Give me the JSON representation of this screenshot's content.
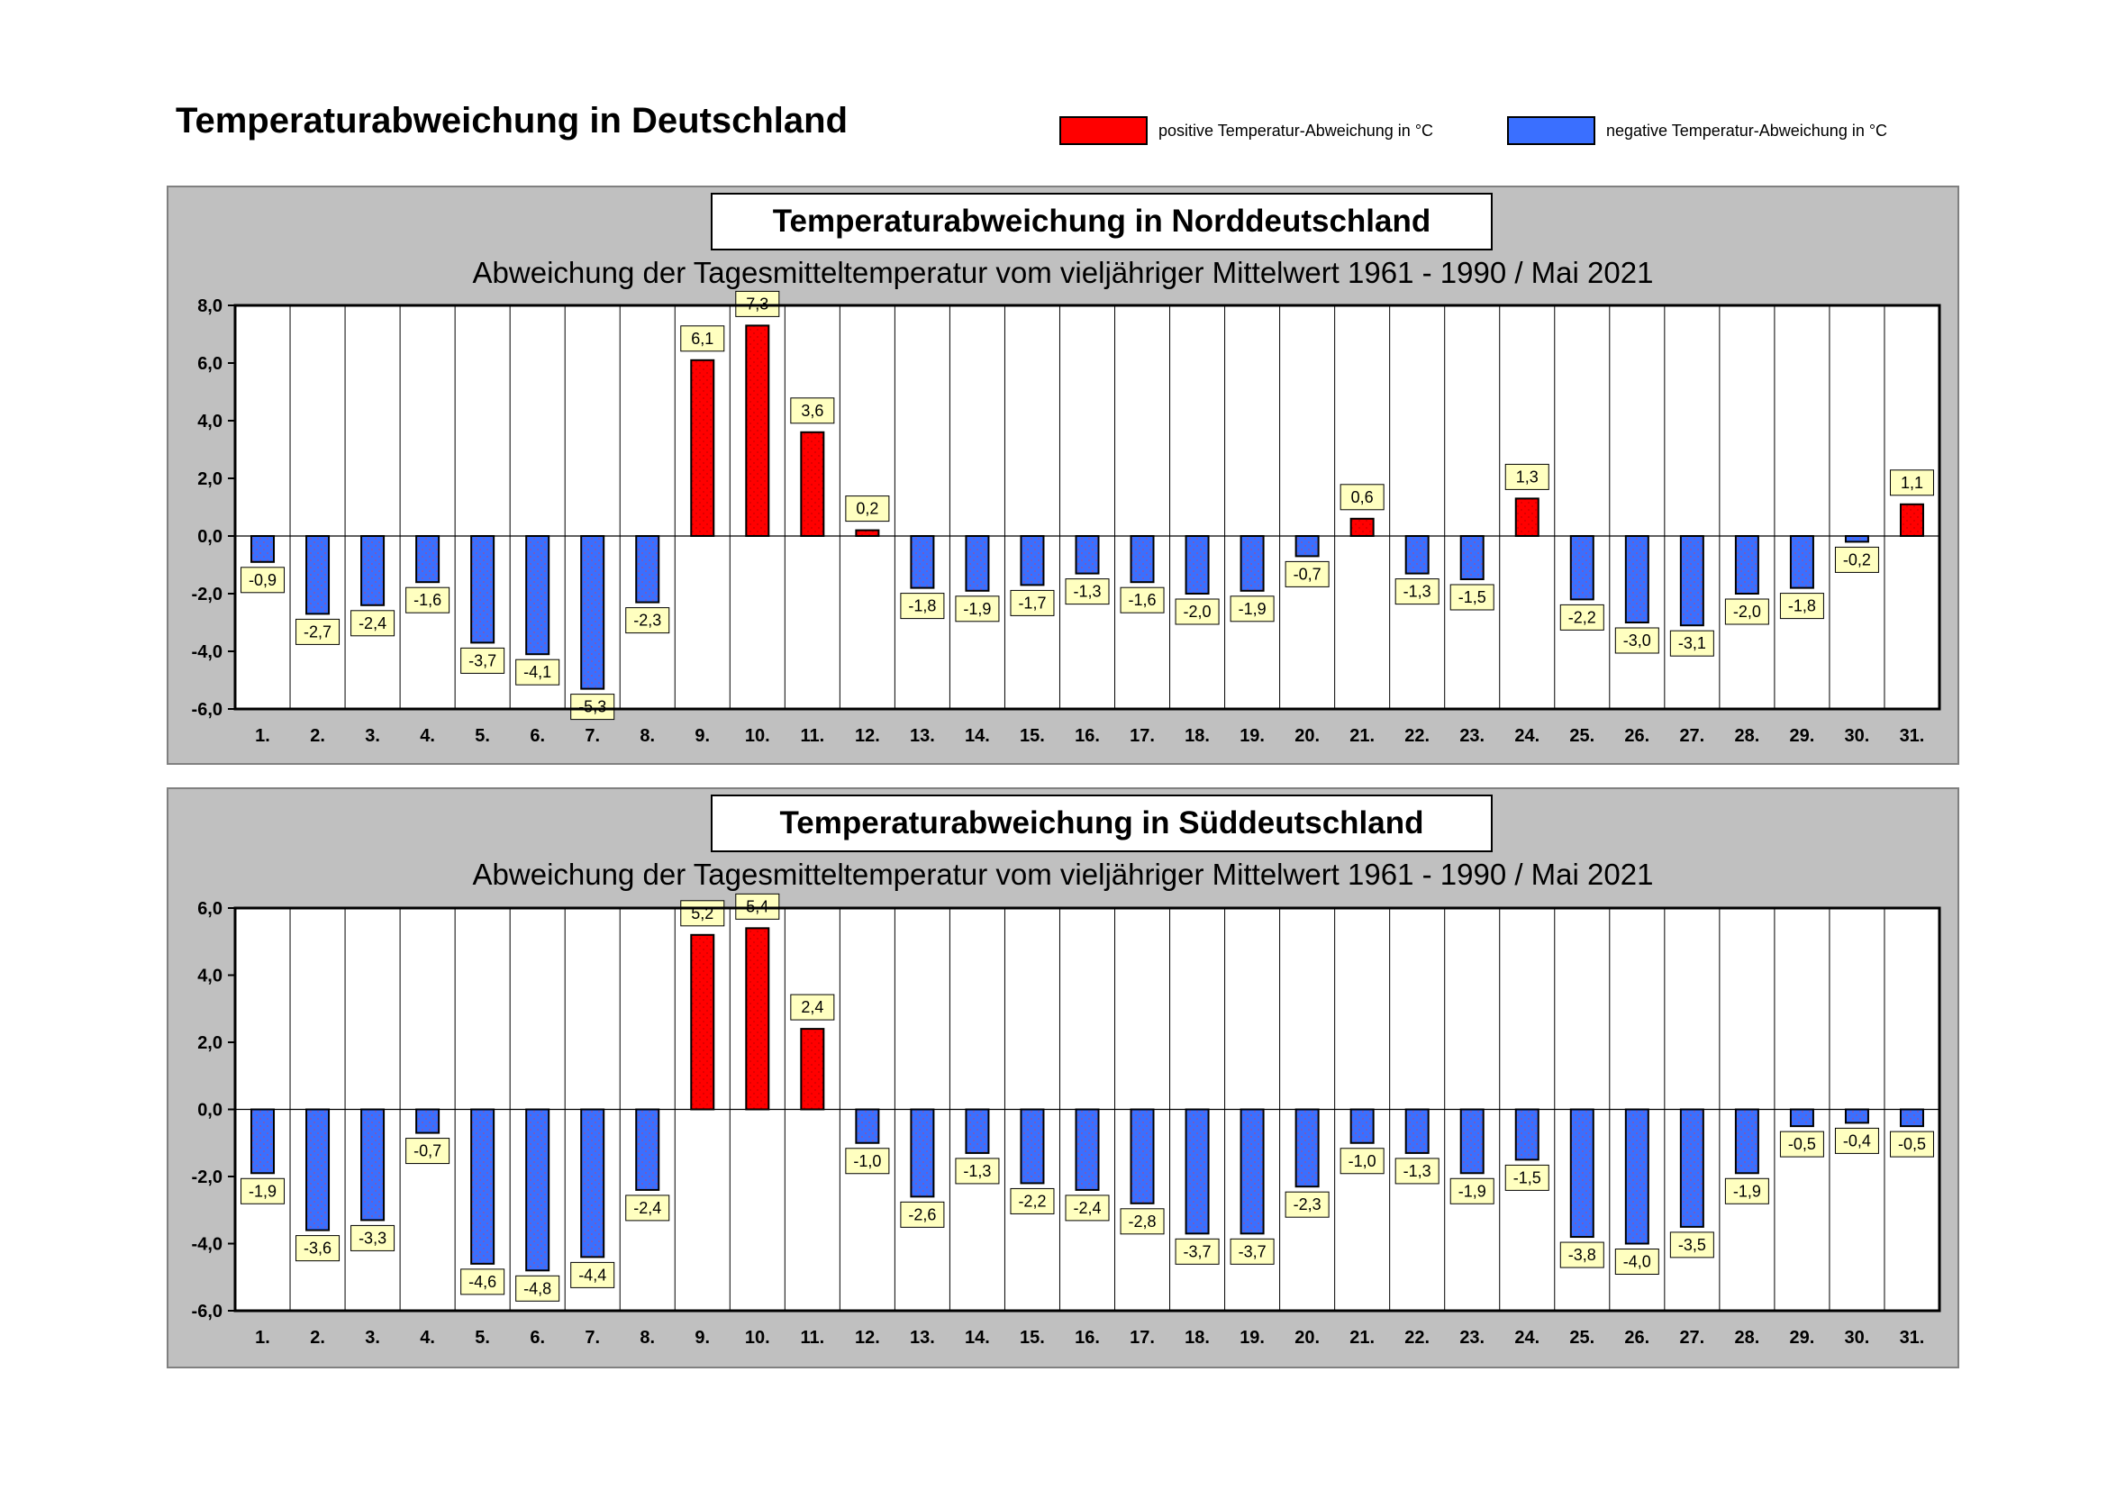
{
  "title": "Temperaturabweichung in Deutschland",
  "legend": {
    "positive_label": "positive Temperatur-Abweichung in °C",
    "negative_label": "negative Temperatur-Abweichung in °C",
    "positive_color": "#ff0000",
    "negative_color": "#3a6fff"
  },
  "charts": [
    {
      "title": "Temperaturabweichung in Norddeutschland",
      "subtitle": "Abweichung der Tagesmitteltemperatur vom vieljähriger Mittelwert 1961 - 1990  /  Mai 2021"
    },
    {
      "title": "Temperaturabweichung in Süddeutschland",
      "subtitle": "Abweichung der Tagesmitteltemperatur vom vieljähriger Mittelwert 1961 - 1990  /  Mai 2021"
    }
  ],
  "chart_data": [
    {
      "type": "bar",
      "title": "Temperaturabweichung in Norddeutschland",
      "categories": [
        "1.",
        "2.",
        "3.",
        "4.",
        "5.",
        "6.",
        "7.",
        "8.",
        "9.",
        "10.",
        "11.",
        "12.",
        "13.",
        "14.",
        "15.",
        "16.",
        "17.",
        "18.",
        "19.",
        "20.",
        "21.",
        "22.",
        "23.",
        "24.",
        "25.",
        "26.",
        "27.",
        "28.",
        "29.",
        "30.",
        "31."
      ],
      "values": [
        -0.9,
        -2.7,
        -2.4,
        -1.6,
        -3.7,
        -4.1,
        -5.3,
        -2.3,
        6.1,
        7.3,
        3.6,
        0.2,
        -1.8,
        -1.9,
        -1.7,
        -1.3,
        -1.6,
        -2.0,
        -1.9,
        -0.7,
        0.6,
        -1.3,
        -1.5,
        1.3,
        -2.2,
        -3.0,
        -3.1,
        -2.0,
        -1.8,
        -0.2,
        1.1
      ],
      "value_labels": [
        "-0,9",
        "-2,7",
        "-2,4",
        "-1,6",
        "-3,7",
        "-4,1",
        "-5,3",
        "-2,3",
        "6,1",
        "7,3",
        "3,6",
        "0,2",
        "-1,8",
        "-1,9",
        "-1,7",
        "-1,3",
        "-1,6",
        "-2,0",
        "-1,9",
        "-0,7",
        "0,6",
        "-1,3",
        "-1,5",
        "1,3",
        "-2,2",
        "-3,0",
        "-3,1",
        "-2,0",
        "-1,8",
        "-0,2",
        "1,1"
      ],
      "ylim": [
        -6,
        8
      ],
      "yticks": [
        "8,0",
        "6,0",
        "4,0",
        "2,0",
        "0,0",
        "-2,0",
        "-4,0",
        "-6,0"
      ],
      "grid": "vertical"
    },
    {
      "type": "bar",
      "title": "Temperaturabweichung in Süddeutschland",
      "categories": [
        "1.",
        "2.",
        "3.",
        "4.",
        "5.",
        "6.",
        "7.",
        "8.",
        "9.",
        "10.",
        "11.",
        "12.",
        "13.",
        "14.",
        "15.",
        "16.",
        "17.",
        "18.",
        "19.",
        "20.",
        "21.",
        "22.",
        "23.",
        "24.",
        "25.",
        "26.",
        "27.",
        "28.",
        "29.",
        "30.",
        "31."
      ],
      "values": [
        -1.9,
        -3.6,
        -3.3,
        -0.7,
        -4.6,
        -4.8,
        -4.4,
        -2.4,
        5.2,
        5.4,
        2.4,
        -1.0,
        -2.6,
        -1.3,
        -2.2,
        -2.4,
        -2.8,
        -3.7,
        -3.7,
        -2.3,
        -1.0,
        -1.3,
        -1.9,
        -1.5,
        -3.8,
        -4.0,
        -3.5,
        -1.9,
        -0.5,
        -0.4,
        -0.5
      ],
      "value_labels": [
        "-1,9",
        "-3,6",
        "-3,3",
        "-0,7",
        "-4,6",
        "-4,8",
        "-4,4",
        "-2,4",
        "5,2",
        "5,4",
        "2,4",
        "-1,0",
        "-2,6",
        "-1,3",
        "-2,2",
        "-2,4",
        "-2,8",
        "-3,7",
        "-3,7",
        "-2,3",
        "-1,0",
        "-1,3",
        "-1,9",
        "-1,5",
        "-3,8",
        "-4,0",
        "-3,5",
        "-1,9",
        "-0,5",
        "-0,4",
        "-0,5"
      ],
      "ylim": [
        -6,
        6
      ],
      "yticks": [
        "6,0",
        "4,0",
        "2,0",
        "0,0",
        "-2,0",
        "-4,0",
        "-6,0"
      ],
      "grid": "vertical"
    }
  ]
}
